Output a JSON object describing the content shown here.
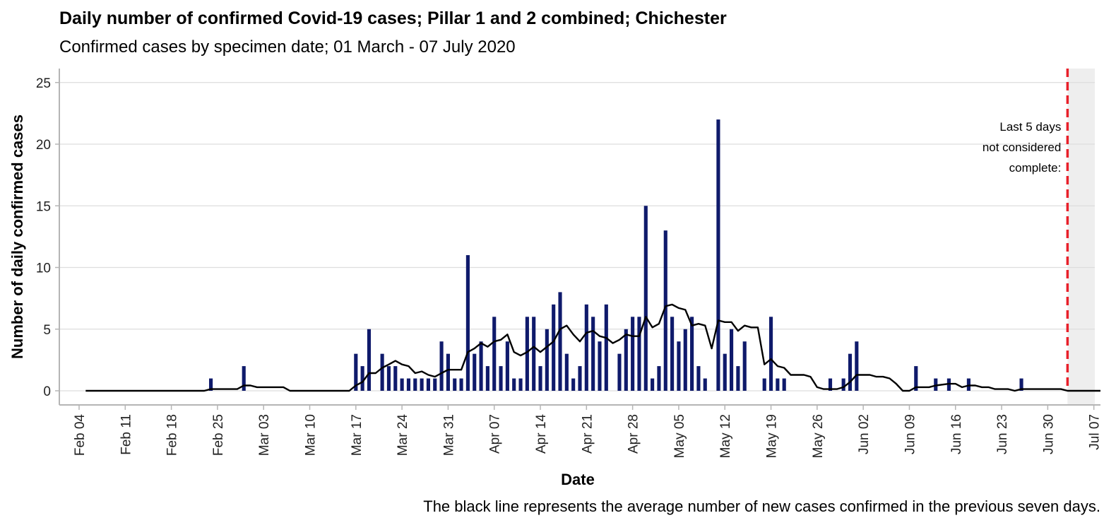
{
  "chart_data": {
    "type": "bar",
    "title": "Daily number of confirmed Covid-19 cases; Pillar 1 and 2 combined; Chichester",
    "subtitle": "Confirmed cases by specimen date; 01 March - 07 July 2020",
    "xlabel": "Date",
    "ylabel": "Number of daily confirmed cases",
    "caption": "The black line represents the average number of new cases confirmed in the previous seven days.",
    "annotation": [
      "Last 5 days",
      "not considered",
      "complete:"
    ],
    "ylim": [
      0,
      26
    ],
    "xlim": [
      "2020-02-01",
      "2020-07-08"
    ],
    "y_ticks": [
      0,
      5,
      10,
      15,
      20,
      25
    ],
    "x_ticks": [
      {
        "date": "2020-02-04",
        "label": "Feb 04"
      },
      {
        "date": "2020-02-11",
        "label": "Feb 11"
      },
      {
        "date": "2020-02-18",
        "label": "Feb 18"
      },
      {
        "date": "2020-02-25",
        "label": "Feb 25"
      },
      {
        "date": "2020-03-03",
        "label": "Mar 03"
      },
      {
        "date": "2020-03-10",
        "label": "Mar 10"
      },
      {
        "date": "2020-03-17",
        "label": "Mar 17"
      },
      {
        "date": "2020-03-24",
        "label": "Mar 24"
      },
      {
        "date": "2020-03-31",
        "label": "Mar 31"
      },
      {
        "date": "2020-04-07",
        "label": "Apr 07"
      },
      {
        "date": "2020-04-14",
        "label": "Apr 14"
      },
      {
        "date": "2020-04-21",
        "label": "Apr 21"
      },
      {
        "date": "2020-04-28",
        "label": "Apr 28"
      },
      {
        "date": "2020-05-05",
        "label": "May 05"
      },
      {
        "date": "2020-05-12",
        "label": "May 12"
      },
      {
        "date": "2020-05-19",
        "label": "May 19"
      },
      {
        "date": "2020-05-26",
        "label": "May 26"
      },
      {
        "date": "2020-06-02",
        "label": "Jun 02"
      },
      {
        "date": "2020-06-09",
        "label": "Jun 09"
      },
      {
        "date": "2020-06-16",
        "label": "Jun 16"
      },
      {
        "date": "2020-06-23",
        "label": "Jun 23"
      },
      {
        "date": "2020-06-30",
        "label": "Jun 30"
      },
      {
        "date": "2020-07-07",
        "label": "Jul 07"
      }
    ],
    "incomplete_from": "2020-07-03",
    "grid": true,
    "colors": {
      "bar": "#0f1a6b",
      "line": "#000000",
      "cutoff": "#e8202a",
      "shade": "#eeeeee",
      "grid": "#dddddd",
      "axis": "#b5b5b5"
    },
    "series": [
      {
        "kind": "bar",
        "points": [
          [
            "2020-02-24",
            1
          ],
          [
            "2020-02-29",
            2
          ],
          [
            "2020-03-17",
            3
          ],
          [
            "2020-03-18",
            2
          ],
          [
            "2020-03-19",
            5
          ],
          [
            "2020-03-21",
            3
          ],
          [
            "2020-03-22",
            2
          ],
          [
            "2020-03-23",
            2
          ],
          [
            "2020-03-24",
            1
          ],
          [
            "2020-03-25",
            1
          ],
          [
            "2020-03-26",
            1
          ],
          [
            "2020-03-27",
            1
          ],
          [
            "2020-03-28",
            1
          ],
          [
            "2020-03-29",
            1
          ],
          [
            "2020-03-30",
            4
          ],
          [
            "2020-03-31",
            3
          ],
          [
            "2020-04-01",
            1
          ],
          [
            "2020-04-02",
            1
          ],
          [
            "2020-04-03",
            11
          ],
          [
            "2020-04-04",
            3
          ],
          [
            "2020-04-05",
            4
          ],
          [
            "2020-04-06",
            2
          ],
          [
            "2020-04-07",
            6
          ],
          [
            "2020-04-08",
            2
          ],
          [
            "2020-04-09",
            4
          ],
          [
            "2020-04-10",
            1
          ],
          [
            "2020-04-11",
            1
          ],
          [
            "2020-04-12",
            6
          ],
          [
            "2020-04-13",
            6
          ],
          [
            "2020-04-14",
            2
          ],
          [
            "2020-04-15",
            5
          ],
          [
            "2020-04-16",
            7
          ],
          [
            "2020-04-17",
            8
          ],
          [
            "2020-04-18",
            3
          ],
          [
            "2020-04-19",
            1
          ],
          [
            "2020-04-20",
            2
          ],
          [
            "2020-04-21",
            7
          ],
          [
            "2020-04-22",
            6
          ],
          [
            "2020-04-23",
            4
          ],
          [
            "2020-04-24",
            7
          ],
          [
            "2020-04-26",
            3
          ],
          [
            "2020-04-27",
            5
          ],
          [
            "2020-04-28",
            6
          ],
          [
            "2020-04-29",
            6
          ],
          [
            "2020-04-30",
            15
          ],
          [
            "2020-05-01",
            1
          ],
          [
            "2020-05-02",
            2
          ],
          [
            "2020-05-03",
            13
          ],
          [
            "2020-05-04",
            6
          ],
          [
            "2020-05-05",
            4
          ],
          [
            "2020-05-06",
            5
          ],
          [
            "2020-05-07",
            6
          ],
          [
            "2020-05-08",
            2
          ],
          [
            "2020-05-09",
            1
          ],
          [
            "2020-05-11",
            22
          ],
          [
            "2020-05-12",
            3
          ],
          [
            "2020-05-13",
            5
          ],
          [
            "2020-05-14",
            2
          ],
          [
            "2020-05-15",
            4
          ],
          [
            "2020-05-18",
            1
          ],
          [
            "2020-05-19",
            6
          ],
          [
            "2020-05-20",
            1
          ],
          [
            "2020-05-21",
            1
          ],
          [
            "2020-05-28",
            1
          ],
          [
            "2020-05-30",
            1
          ],
          [
            "2020-05-31",
            3
          ],
          [
            "2020-06-01",
            4
          ],
          [
            "2020-06-10",
            2
          ],
          [
            "2020-06-13",
            1
          ],
          [
            "2020-06-15",
            1
          ],
          [
            "2020-06-18",
            1
          ],
          [
            "2020-06-26",
            1
          ]
        ]
      },
      {
        "kind": "line",
        "points": [
          [
            "2020-02-05",
            0
          ],
          [
            "2020-02-23",
            0
          ],
          [
            "2020-02-24",
            0.14
          ],
          [
            "2020-02-28",
            0.14
          ],
          [
            "2020-02-29",
            0.43
          ],
          [
            "2020-03-01",
            0.43
          ],
          [
            "2020-03-02",
            0.29
          ],
          [
            "2020-03-06",
            0.29
          ],
          [
            "2020-03-07",
            0
          ],
          [
            "2020-03-16",
            0
          ],
          [
            "2020-03-17",
            0.43
          ],
          [
            "2020-03-18",
            0.71
          ],
          [
            "2020-03-19",
            1.43
          ],
          [
            "2020-03-20",
            1.43
          ],
          [
            "2020-03-21",
            1.86
          ],
          [
            "2020-03-22",
            2.14
          ],
          [
            "2020-03-23",
            2.43
          ],
          [
            "2020-03-24",
            2.14
          ],
          [
            "2020-03-25",
            2.0
          ],
          [
            "2020-03-26",
            1.43
          ],
          [
            "2020-03-27",
            1.57
          ],
          [
            "2020-03-28",
            1.29
          ],
          [
            "2020-03-29",
            1.14
          ],
          [
            "2020-03-30",
            1.43
          ],
          [
            "2020-03-31",
            1.71
          ],
          [
            "2020-04-01",
            1.71
          ],
          [
            "2020-04-02",
            1.71
          ],
          [
            "2020-04-03",
            3.14
          ],
          [
            "2020-04-04",
            3.43
          ],
          [
            "2020-04-05",
            3.86
          ],
          [
            "2020-04-06",
            3.57
          ],
          [
            "2020-04-07",
            4.0
          ],
          [
            "2020-04-08",
            4.14
          ],
          [
            "2020-04-09",
            4.57
          ],
          [
            "2020-04-10",
            3.14
          ],
          [
            "2020-04-11",
            2.86
          ],
          [
            "2020-04-12",
            3.14
          ],
          [
            "2020-04-13",
            3.57
          ],
          [
            "2020-04-14",
            3.14
          ],
          [
            "2020-04-15",
            3.57
          ],
          [
            "2020-04-16",
            4.0
          ],
          [
            "2020-04-17",
            5.0
          ],
          [
            "2020-04-18",
            5.29
          ],
          [
            "2020-04-19",
            4.57
          ],
          [
            "2020-04-20",
            4.0
          ],
          [
            "2020-04-21",
            4.71
          ],
          [
            "2020-04-22",
            4.86
          ],
          [
            "2020-04-23",
            4.43
          ],
          [
            "2020-04-24",
            4.29
          ],
          [
            "2020-04-25",
            3.86
          ],
          [
            "2020-04-26",
            4.14
          ],
          [
            "2020-04-27",
            4.57
          ],
          [
            "2020-04-28",
            4.43
          ],
          [
            "2020-04-29",
            4.43
          ],
          [
            "2020-04-30",
            6.0
          ],
          [
            "2020-05-01",
            5.14
          ],
          [
            "2020-05-02",
            5.43
          ],
          [
            "2020-05-03",
            6.86
          ],
          [
            "2020-05-04",
            7.0
          ],
          [
            "2020-05-05",
            6.71
          ],
          [
            "2020-05-06",
            6.57
          ],
          [
            "2020-05-07",
            5.29
          ],
          [
            "2020-05-08",
            5.43
          ],
          [
            "2020-05-09",
            5.29
          ],
          [
            "2020-05-10",
            3.43
          ],
          [
            "2020-05-11",
            5.71
          ],
          [
            "2020-05-12",
            5.57
          ],
          [
            "2020-05-13",
            5.57
          ],
          [
            "2020-05-14",
            4.86
          ],
          [
            "2020-05-15",
            5.29
          ],
          [
            "2020-05-16",
            5.14
          ],
          [
            "2020-05-17",
            5.14
          ],
          [
            "2020-05-18",
            2.14
          ],
          [
            "2020-05-19",
            2.57
          ],
          [
            "2020-05-20",
            2.0
          ],
          [
            "2020-05-21",
            1.86
          ],
          [
            "2020-05-22",
            1.29
          ],
          [
            "2020-05-24",
            1.29
          ],
          [
            "2020-05-25",
            1.14
          ],
          [
            "2020-05-26",
            0.29
          ],
          [
            "2020-05-27",
            0.14
          ],
          [
            "2020-05-29",
            0.14
          ],
          [
            "2020-05-30",
            0.29
          ],
          [
            "2020-05-31",
            0.71
          ],
          [
            "2020-06-01",
            1.29
          ],
          [
            "2020-06-03",
            1.29
          ],
          [
            "2020-06-04",
            1.14
          ],
          [
            "2020-06-05",
            1.14
          ],
          [
            "2020-06-06",
            1.0
          ],
          [
            "2020-06-07",
            0.57
          ],
          [
            "2020-06-08",
            0
          ],
          [
            "2020-06-09",
            0
          ],
          [
            "2020-06-10",
            0.29
          ],
          [
            "2020-06-12",
            0.29
          ],
          [
            "2020-06-13",
            0.43
          ],
          [
            "2020-06-15",
            0.57
          ],
          [
            "2020-06-16",
            0.57
          ],
          [
            "2020-06-17",
            0.29
          ],
          [
            "2020-06-18",
            0.43
          ],
          [
            "2020-06-19",
            0.43
          ],
          [
            "2020-06-20",
            0.29
          ],
          [
            "2020-06-21",
            0.29
          ],
          [
            "2020-06-22",
            0.14
          ],
          [
            "2020-06-24",
            0.14
          ],
          [
            "2020-06-25",
            0
          ],
          [
            "2020-06-26",
            0.14
          ],
          [
            "2020-07-02",
            0.14
          ],
          [
            "2020-07-03",
            0
          ],
          [
            "2020-07-08",
            0
          ]
        ]
      }
    ]
  }
}
